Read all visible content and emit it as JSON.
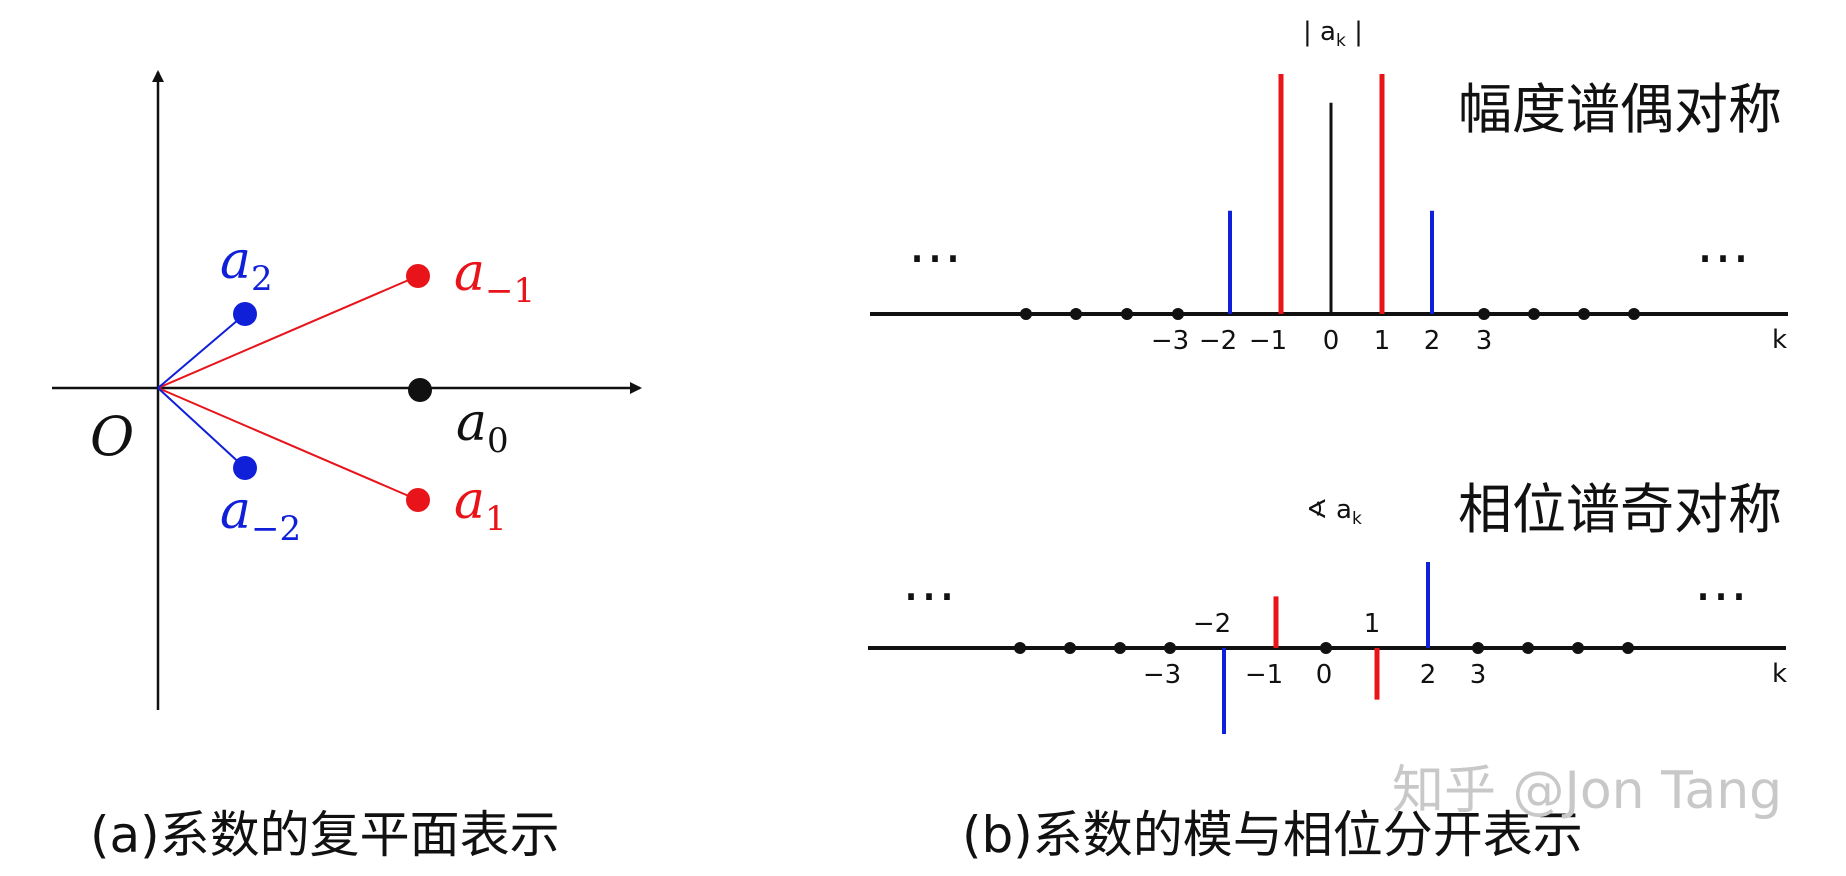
{
  "colors": {
    "red": "#e8141a",
    "blue": "#1020d8",
    "black": "#111111",
    "watermark": "#c8c8c8"
  },
  "panel_a": {
    "caption": "(a)系数的复平面表示",
    "origin_label": "O",
    "points": [
      {
        "name": "a",
        "sub": "0",
        "color": "#111111"
      },
      {
        "name": "a",
        "sub": "1",
        "color": "#e8141a"
      },
      {
        "name": "a",
        "sub": "−1",
        "color": "#e8141a"
      },
      {
        "name": "a",
        "sub": "2",
        "color": "#1020d8"
      },
      {
        "name": "a",
        "sub": "−2",
        "color": "#1020d8"
      }
    ]
  },
  "panel_b": {
    "caption": "(b)系数的模与相位分开表示",
    "magnitude": {
      "heading": "幅度谱偶对称",
      "axis_title": "| a",
      "axis_title_sub": "k",
      "axis_title_end": " |",
      "x_label": "k",
      "ellipsis": "…",
      "tick_labels": [
        "−3",
        "−2",
        "−1",
        "0",
        "1",
        "2",
        "3"
      ]
    },
    "phase": {
      "heading": "相位谱奇对称",
      "axis_title": "∢ a",
      "axis_title_sub": "k",
      "x_label": "k",
      "ellipsis": "…",
      "tick_labels_below": [
        "−3",
        "−1",
        "0",
        "2",
        "3"
      ],
      "tick_labels_above": [
        "−2",
        "1"
      ]
    }
  },
  "watermark": "知乎 @Jon Tang",
  "chart_data": [
    {
      "type": "bar",
      "title": "幅度谱偶对称",
      "xlabel": "k",
      "ylabel": "|ak|",
      "categories": [
        -2,
        -1,
        0,
        1,
        2
      ],
      "values": [
        0.43,
        1.0,
        0.88,
        1.0,
        0.43
      ],
      "colors": [
        "#1020d8",
        "#e8141a",
        "#111111",
        "#e8141a",
        "#1020d8"
      ]
    },
    {
      "type": "bar",
      "title": "相位谱奇对称",
      "xlabel": "k",
      "ylabel": "∢ak",
      "categories": [
        -2,
        -1,
        0,
        1,
        2
      ],
      "values": [
        -1.0,
        0.6,
        0,
        -0.6,
        1.0
      ],
      "colors": [
        "#1020d8",
        "#e8141a",
        "#111111",
        "#e8141a",
        "#1020d8"
      ]
    }
  ]
}
